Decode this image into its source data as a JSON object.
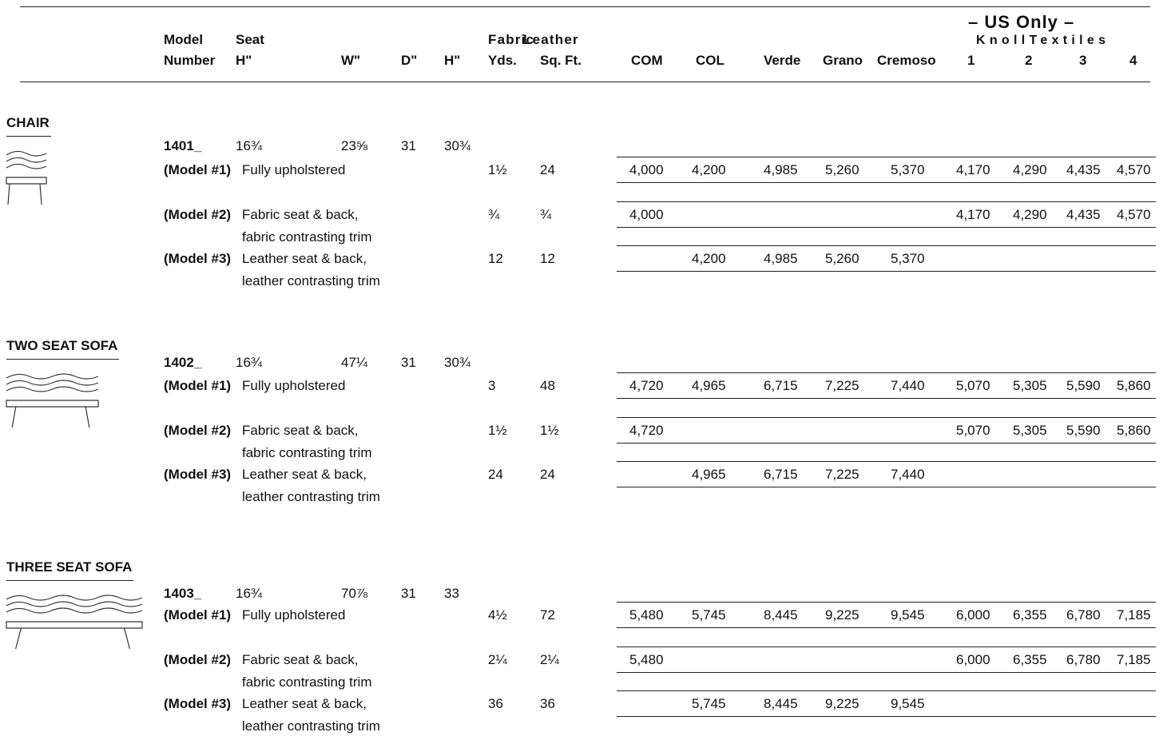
{
  "header": {
    "us_only": "– US Only –",
    "knoll_textiles": "KnollTextiles",
    "columns": [
      {
        "lines": [
          "Model",
          "Number"
        ]
      },
      {
        "lines": [
          "Seat",
          "H\""
        ]
      },
      {
        "lines": [
          "W\""
        ]
      },
      {
        "lines": [
          "D\""
        ]
      },
      {
        "lines": [
          "H\""
        ]
      },
      {
        "lines": [
          "Fabric",
          "Yds."
        ]
      },
      {
        "lines": [
          "Leather",
          "Sq. Ft."
        ]
      },
      {
        "lines": [
          "COM"
        ]
      },
      {
        "lines": [
          "COL"
        ]
      },
      {
        "lines": [
          "Verde"
        ]
      },
      {
        "lines": [
          "Grano"
        ]
      },
      {
        "lines": [
          "Cremoso"
        ]
      },
      {
        "lines": [
          "1"
        ]
      },
      {
        "lines": [
          "2"
        ]
      },
      {
        "lines": [
          "3"
        ]
      },
      {
        "lines": [
          "4"
        ]
      }
    ]
  },
  "sections": [
    {
      "name": "CHAIR",
      "model": {
        "number": "1401_",
        "seat_h": "16¾",
        "w": "23⅝",
        "d": "31",
        "h": "30¾"
      },
      "rows": [
        {
          "label": "(Model #1)",
          "desc": [
            "Fully upholstered"
          ],
          "yds": "1½",
          "sqft": "24",
          "prices": [
            "4,000",
            "4,200",
            "4,985",
            "5,260",
            "5,370",
            "4,170",
            "4,290",
            "4,435",
            "4,570"
          ]
        },
        {
          "label": "(Model #2)",
          "desc": [
            "Fabric seat & back,",
            "fabric contrasting trim"
          ],
          "yds": "¾",
          "sqft": "¾",
          "prices": [
            "4,000",
            null,
            null,
            null,
            null,
            "4,170",
            "4,290",
            "4,435",
            "4,570"
          ]
        },
        {
          "label": "(Model #3)",
          "desc": [
            "Leather seat & back,",
            "leather contrasting trim"
          ],
          "yds": "12",
          "sqft": "12",
          "prices": [
            null,
            "4,200",
            "4,985",
            "5,260",
            "5,370",
            null,
            null,
            null,
            null
          ]
        }
      ]
    },
    {
      "name": "TWO SEAT SOFA",
      "model": {
        "number": "1402_",
        "seat_h": "16¾",
        "w": "47¼",
        "d": "31",
        "h": "30¾"
      },
      "rows": [
        {
          "label": "(Model #1)",
          "desc": [
            "Fully upholstered"
          ],
          "yds": "3",
          "sqft": "48",
          "prices": [
            "4,720",
            "4,965",
            "6,715",
            "7,225",
            "7,440",
            "5,070",
            "5,305",
            "5,590",
            "5,860"
          ]
        },
        {
          "label": "(Model #2)",
          "desc": [
            "Fabric seat & back,",
            "fabric contrasting trim"
          ],
          "yds": "1½",
          "sqft": "1½",
          "prices": [
            "4,720",
            null,
            null,
            null,
            null,
            "5,070",
            "5,305",
            "5,590",
            "5,860"
          ]
        },
        {
          "label": "(Model #3)",
          "desc": [
            "Leather seat & back,",
            "leather contrasting trim"
          ],
          "yds": "24",
          "sqft": "24",
          "prices": [
            null,
            "4,965",
            "6,715",
            "7,225",
            "7,440",
            null,
            null,
            null,
            null
          ]
        }
      ]
    },
    {
      "name": "THREE SEAT SOFA",
      "model": {
        "number": "1403_",
        "seat_h": "16¾",
        "w": "70⅞",
        "d": "31",
        "h": "33"
      },
      "rows": [
        {
          "label": "(Model #1)",
          "desc": [
            "Fully upholstered"
          ],
          "yds": "4½",
          "sqft": "72",
          "prices": [
            "5,480",
            "5,745",
            "8,445",
            "9,225",
            "9,545",
            "6,000",
            "6,355",
            "6,780",
            "7,185"
          ]
        },
        {
          "label": "(Model #2)",
          "desc": [
            "Fabric seat & back,",
            "fabric contrasting trim"
          ],
          "yds": "2¼",
          "sqft": "2¼",
          "prices": [
            "5,480",
            null,
            null,
            null,
            null,
            "6,000",
            "6,355",
            "6,780",
            "7,185"
          ]
        },
        {
          "label": "(Model #3)",
          "desc": [
            "Leather seat & back,",
            "leather contrasting trim"
          ],
          "yds": "36",
          "sqft": "36",
          "prices": [
            null,
            "5,745",
            "8,445",
            "9,225",
            "9,545",
            null,
            null,
            null,
            null
          ]
        }
      ]
    }
  ]
}
